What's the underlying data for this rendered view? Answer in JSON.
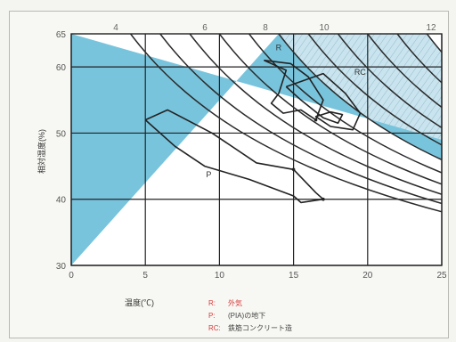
{
  "chart_data": {
    "type": "line",
    "xlabel": "温度(℃)",
    "ylabel": "相対湿度(%)",
    "xlim": [
      0,
      25
    ],
    "ylim": [
      30,
      65
    ],
    "x_ticks": [
      "0",
      "5",
      "10",
      "15",
      "20",
      "25"
    ],
    "y_ticks": [
      "30",
      "40",
      "50",
      "60",
      "65"
    ],
    "top_ticks": [
      "4",
      "6",
      "8",
      "10",
      "12"
    ],
    "grid": true,
    "shaded_regions": [
      {
        "name": "solid-blue",
        "color": "#78c4dd"
      },
      {
        "name": "hatched",
        "color": "#c9e4ee"
      }
    ],
    "iso_curves": [
      {
        "v": 2
      },
      {
        "v": 4
      },
      {
        "v": 6
      },
      {
        "v": 8
      },
      {
        "v": 10
      },
      {
        "v": 12
      },
      {
        "v": 14
      },
      {
        "v": 16
      },
      {
        "v": 18
      },
      {
        "v": 20
      },
      {
        "v": 22
      }
    ],
    "series": [
      {
        "name": "R",
        "color": "#222222",
        "points": [
          [
            13,
            61
          ],
          [
            14.5,
            59.5
          ],
          [
            14,
            56
          ],
          [
            13.5,
            54.5
          ],
          [
            14.3,
            53
          ],
          [
            15.5,
            53.5
          ],
          [
            16.5,
            52
          ],
          [
            17,
            55
          ],
          [
            16,
            58.5
          ],
          [
            14.8,
            60.5
          ],
          [
            13,
            61
          ]
        ]
      },
      {
        "name": "RC",
        "color": "#222222",
        "points": [
          [
            14.5,
            57
          ],
          [
            17,
            59
          ],
          [
            18.5,
            56
          ],
          [
            19.5,
            53
          ],
          [
            19,
            50.5
          ],
          [
            17.5,
            51
          ],
          [
            16.5,
            52.5
          ],
          [
            17.5,
            53.2
          ],
          [
            18.3,
            52.8
          ],
          [
            18,
            51.5
          ],
          [
            17,
            52.3
          ],
          [
            15.5,
            55
          ],
          [
            14.5,
            57
          ]
        ]
      },
      {
        "name": "P",
        "color": "#222222",
        "points": [
          [
            5,
            52
          ],
          [
            6.5,
            53.5
          ],
          [
            9.5,
            50
          ],
          [
            12.5,
            45.5
          ],
          [
            15,
            44.5
          ],
          [
            16.5,
            41
          ],
          [
            17,
            40
          ],
          [
            15.5,
            39.5
          ],
          [
            15,
            40.5
          ],
          [
            12,
            43
          ],
          [
            9,
            45
          ],
          [
            7,
            48
          ],
          [
            5,
            52
          ]
        ]
      }
    ],
    "series_labels": [
      {
        "text": "R",
        "x": 13.8,
        "y": 62.5
      },
      {
        "text": "RC",
        "x": 19.1,
        "y": 58.8
      },
      {
        "text": "P",
        "x": 9.1,
        "y": 43.3
      }
    ],
    "legend": {
      "placement": "bottom",
      "items": [
        {
          "symbol": "R",
          "text": "外気",
          "color": "#d43b3b"
        },
        {
          "symbol": "P",
          "text": "(PIA)の地下",
          "color": "#d43b3b"
        },
        {
          "symbol": "RC",
          "text": "鉄筋コンクリート造",
          "color": "#d43b3b"
        }
      ]
    }
  }
}
